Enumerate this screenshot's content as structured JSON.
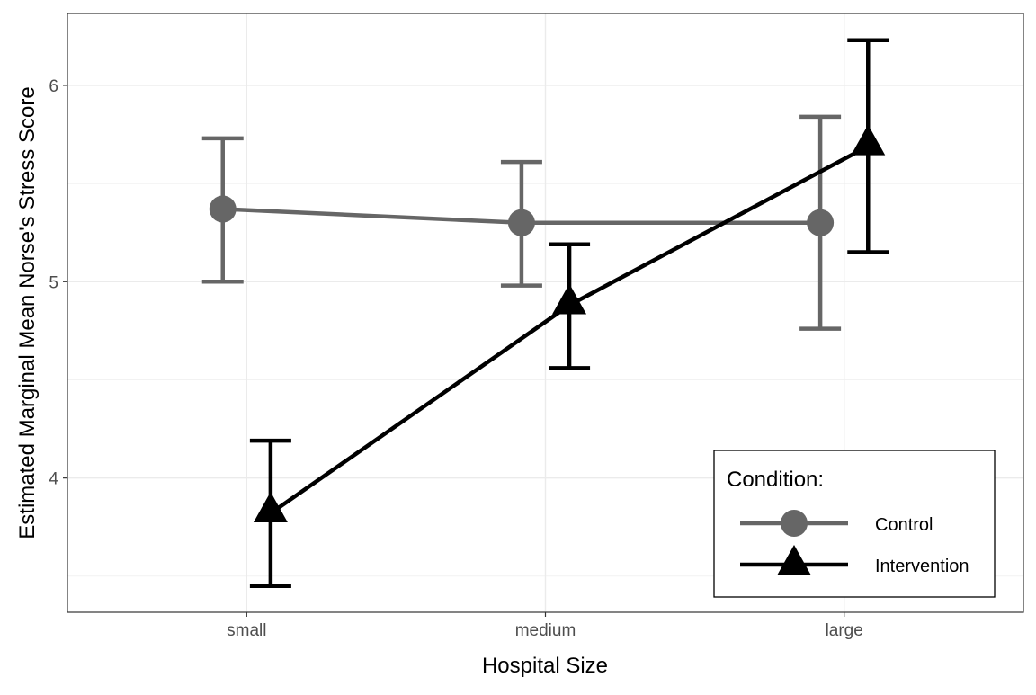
{
  "chart_data": {
    "type": "line",
    "title": "",
    "xlabel": "Hospital Size",
    "ylabel": "Estimated Marginal Mean Norse's Stress Score",
    "categories": [
      "small",
      "medium",
      "large"
    ],
    "ylim": [
      3.316,
      6.366
    ],
    "yticks": [
      4,
      5,
      6
    ],
    "grid": true,
    "legend": {
      "title": "Condition:",
      "placement": "bottom-right"
    },
    "series": [
      {
        "name": "Control",
        "color": "#666666",
        "marker": "circle",
        "values": [
          5.37,
          5.3,
          5.3
        ],
        "lower": [
          5.0,
          4.98,
          4.76
        ],
        "upper": [
          5.73,
          5.61,
          5.84
        ]
      },
      {
        "name": "Intervention",
        "color": "#000000",
        "marker": "triangle",
        "values": [
          3.82,
          4.88,
          5.69
        ],
        "lower": [
          3.45,
          4.56,
          5.15
        ],
        "upper": [
          4.19,
          5.19,
          6.23
        ]
      }
    ]
  }
}
